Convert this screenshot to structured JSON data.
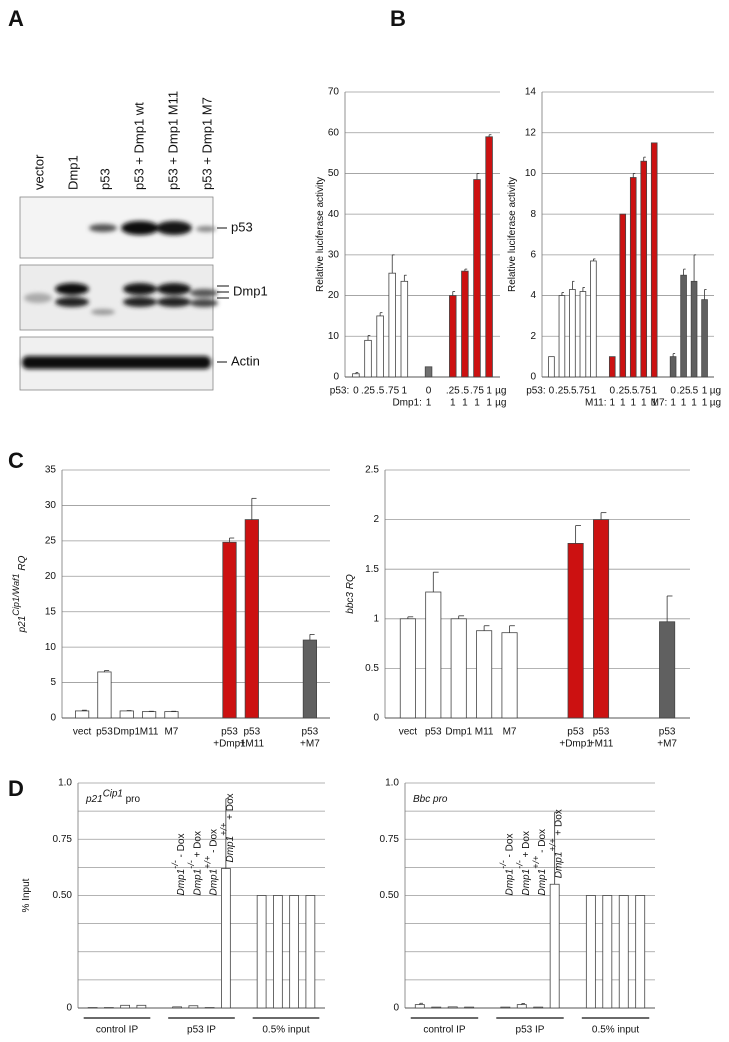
{
  "panels": [
    "A",
    "B",
    "C",
    "D"
  ],
  "blot": {
    "lanes": [
      "vector",
      "Dmp1",
      "p53",
      "p53 + Dmp1 wt",
      "p53 + Dmp1 M11",
      "p53 + Dmp1 M7"
    ],
    "labels": [
      "p53",
      "Dmp1",
      "Actin"
    ]
  },
  "chart_data": [
    {
      "type": "bar",
      "y_label": [
        "Relative luciferase activity"
      ],
      "ylim": [
        0,
        70
      ],
      "yticks": [
        0,
        10,
        20,
        30,
        40,
        50,
        60,
        70
      ],
      "grid": true,
      "row1_title": "p53:",
      "unit": "µg",
      "groups": [
        {
          "color": "#ffffff",
          "labels": [
            "0",
            ".25",
            ".5",
            ".75",
            "1"
          ],
          "values": [
            0.8,
            9,
            15,
            25.5,
            23.5
          ],
          "errors": [
            0.3,
            1.2,
            0.8,
            4.5,
            1.5
          ]
        },
        {
          "color": "#707070",
          "labels": [
            "0"
          ],
          "row2_title": "Dmp1:",
          "row2": [
            "1"
          ],
          "values": [
            2.5
          ],
          "errors": [
            null
          ]
        },
        {
          "color": "#cc1111",
          "labels": [
            ".25",
            ".5",
            ".75",
            "1"
          ],
          "row2": [
            "1",
            "1",
            "1",
            "1"
          ],
          "values": [
            20,
            26,
            48.5,
            59
          ],
          "errors": [
            1,
            0.5,
            1.5,
            0.5
          ]
        }
      ]
    },
    {
      "type": "bar",
      "y_label": [
        "Relative luciferase activity"
      ],
      "ylim": [
        0,
        14
      ],
      "yticks": [
        0,
        2,
        4,
        6,
        8,
        10,
        12,
        14
      ],
      "grid": true,
      "row1_title": "p53:",
      "unit": "µg",
      "groups": [
        {
          "color": "#ffffff",
          "labels": [
            "0",
            ".25",
            ".5",
            ".75",
            "1"
          ],
          "values": [
            1,
            4,
            4.3,
            4.2,
            5.7
          ],
          "errors": [
            null,
            0.15,
            0.4,
            0.2,
            0.1
          ]
        },
        {
          "color": "#cc1111",
          "labels": [
            "0",
            ".25",
            ".5",
            ".75",
            "1"
          ],
          "row2_title": "M11:",
          "row2": [
            "1",
            "1",
            "1",
            "1",
            "1"
          ],
          "values": [
            1,
            8,
            9.8,
            10.6,
            11.5
          ],
          "errors": [
            null,
            null,
            0.2,
            0.2,
            null
          ]
        },
        {
          "color": "#606060",
          "labels": [
            "0",
            ".25",
            ".5",
            "1"
          ],
          "row2_title": "M7:",
          "row2": [
            "1",
            "1",
            "1",
            "1"
          ],
          "values": [
            1,
            5,
            4.7,
            3.8
          ],
          "errors": [
            0.15,
            0.3,
            1.3,
            0.5
          ]
        }
      ]
    },
    {
      "type": "bar",
      "y_label": [
        "p21",
        "Cip1/Waf1",
        " RQ"
      ],
      "ylim": [
        0,
        35
      ],
      "yticks": [
        0,
        5,
        10,
        15,
        20,
        25,
        30,
        35
      ],
      "grid": true,
      "groups": [
        {
          "color": "#ffffff",
          "labels": [
            "vect",
            "p53",
            "Dmp1",
            "M11",
            "M7"
          ],
          "values": [
            1,
            6.5,
            1,
            0.9,
            0.9
          ],
          "errors": [
            0.1,
            0.2,
            0.05,
            0.05,
            0.05
          ]
        },
        {
          "color": "#cc1111",
          "labels": [
            "p53",
            "p53"
          ],
          "row2": [
            "+Dmp1",
            "+M11"
          ],
          "values": [
            24.8,
            28
          ],
          "errors": [
            0.6,
            3
          ]
        },
        {
          "color": "#606060",
          "labels": [
            "p53"
          ],
          "row2": [
            "+M7"
          ],
          "values": [
            11
          ],
          "errors": [
            0.8
          ]
        }
      ]
    },
    {
      "type": "bar",
      "y_label": [
        "bbc3 RQ"
      ],
      "ylim": [
        0,
        2.5
      ],
      "yticks": [
        0,
        0.5,
        1,
        1.5,
        2,
        2.5
      ],
      "grid": true,
      "groups": [
        {
          "color": "#ffffff",
          "labels": [
            "vect",
            "p53",
            "Dmp1",
            "M11",
            "M7"
          ],
          "values": [
            1,
            1.27,
            1,
            0.88,
            0.86
          ],
          "errors": [
            0.02,
            0.2,
            0.03,
            0.05,
            0.07
          ]
        },
        {
          "color": "#cc1111",
          "labels": [
            "p53",
            "p53"
          ],
          "row2": [
            "+Dmp1",
            "+M11"
          ],
          "values": [
            1.76,
            2.0
          ],
          "errors": [
            0.18,
            0.07
          ]
        },
        {
          "color": "#606060",
          "labels": [
            "p53"
          ],
          "row2": [
            "+M7"
          ],
          "values": [
            0.97
          ],
          "errors": [
            0.26
          ]
        }
      ]
    },
    {
      "type": "bar",
      "title": [
        "p21",
        "Cip1",
        " pro"
      ],
      "y_label": [
        "% Input"
      ],
      "ylim": [
        0,
        1
      ],
      "yticks": [
        0,
        {
          "value": 0.5,
          "label": "0.50"
        },
        0.75,
        {
          "value": 1,
          "label": "1.0"
        }
      ],
      "grid": true,
      "grid_lines": [
        0.125,
        0.25,
        0.375,
        0.625,
        0.875
      ],
      "groups": [
        {
          "name": "control IP",
          "color": "#ffffff",
          "values": [
            0.002,
            0.002,
            0.012,
            0.012
          ],
          "errors": [
            null,
            null,
            null,
            null
          ]
        },
        {
          "name": "p53 IP",
          "color": "#ffffff",
          "values": [
            0.005,
            0.01,
            0.002,
            0.62
          ],
          "errors": [
            null,
            null,
            null,
            0.31
          ],
          "annotations": [
            [
              "Dmp1",
              "-/-",
              " - Dox"
            ],
            [
              "Dmp1",
              "-/-",
              " + Dox"
            ],
            [
              "Dmp1",
              "+/+",
              " - Dox"
            ],
            [
              "Dmp1",
              "+/+",
              " + Dox"
            ]
          ]
        },
        {
          "name": "0.5% input",
          "color": "#ffffff",
          "values": [
            0.5,
            0.5,
            0.5,
            0.5
          ],
          "errors": [
            null,
            null,
            null,
            null
          ]
        }
      ]
    },
    {
      "type": "bar",
      "title": [
        "Bbc pro"
      ],
      "ylim": [
        0,
        1
      ],
      "yticks": [
        0,
        {
          "value": 0.5,
          "label": "0.50"
        },
        0.75,
        {
          "value": 1,
          "label": "1.0"
        }
      ],
      "grid": true,
      "grid_lines": [
        0.125,
        0.25,
        0.375,
        0.625,
        0.875
      ],
      "groups": [
        {
          "name": "control IP",
          "color": "#ffffff",
          "values": [
            0.015,
            0.004,
            0.005,
            0.004
          ],
          "errors": [
            0.006,
            null,
            null,
            null
          ]
        },
        {
          "name": "p53 IP",
          "color": "#ffffff",
          "values": [
            0.004,
            0.015,
            0.004,
            0.55
          ],
          "errors": [
            null,
            0.005,
            null,
            0.32
          ],
          "annotations": [
            [
              "Dmp1",
              "-/-",
              " - Dox"
            ],
            [
              "Dmp1",
              "-/-",
              " + Dox"
            ],
            [
              "Dmp1",
              "+/+",
              " - Dox"
            ],
            [
              "Dmp1",
              "+/+",
              " + Dox"
            ]
          ]
        },
        {
          "name": "0.5% input",
          "color": "#ffffff",
          "values": [
            0.5,
            0.5,
            0.5,
            0.5
          ],
          "errors": [
            null,
            null,
            null,
            null
          ]
        }
      ]
    }
  ]
}
